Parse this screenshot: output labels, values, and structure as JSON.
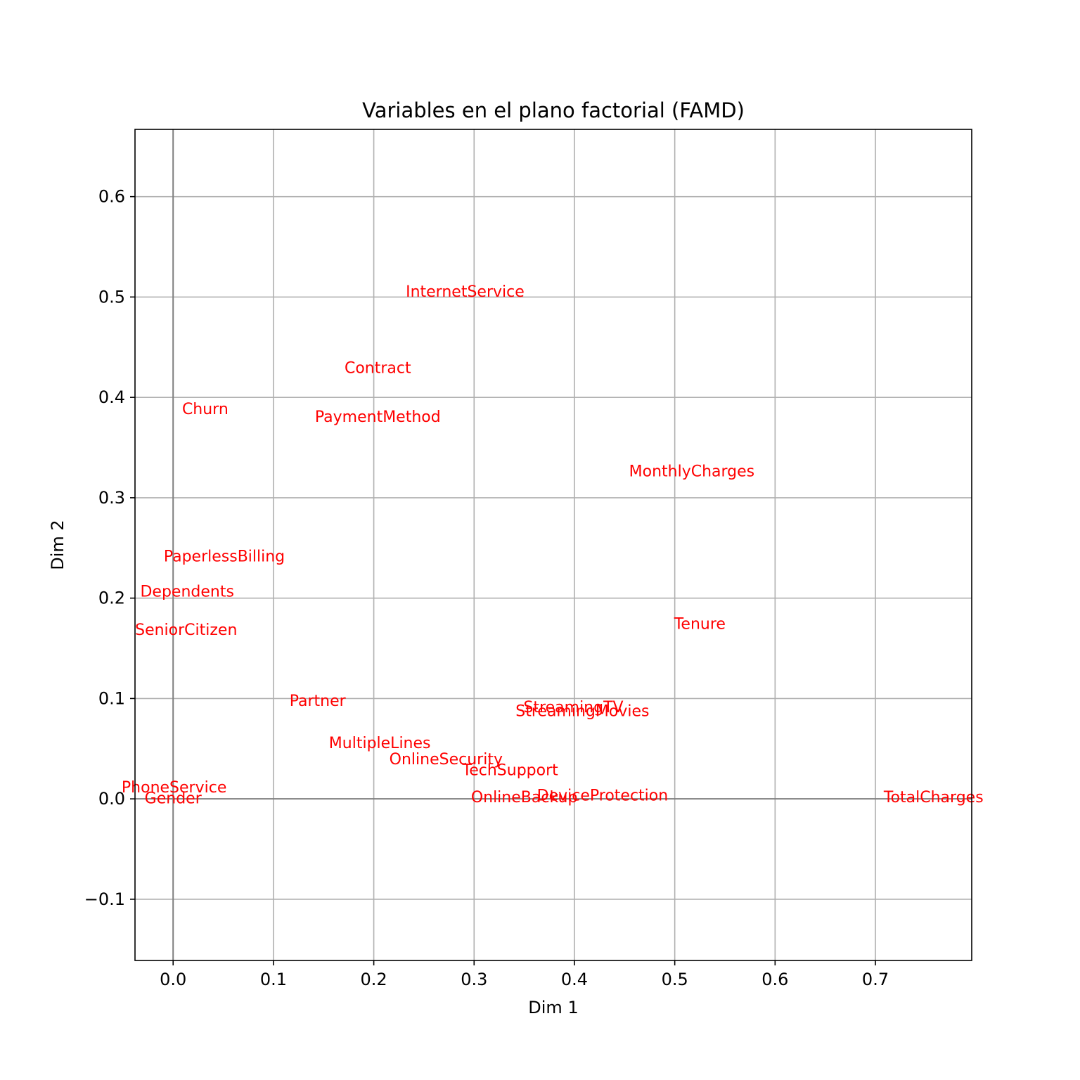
{
  "chart_data": {
    "type": "scatter",
    "title": "Variables en el plano factorial (FAMD)",
    "xlabel": "Dim 1",
    "ylabel": "Dim 2",
    "xlim": [
      -0.038,
      0.796
    ],
    "ylim": [
      -0.161,
      0.667
    ],
    "xticks": [
      0.0,
      0.1,
      0.2,
      0.3,
      0.4,
      0.5,
      0.6,
      0.7
    ],
    "xtick_labels": [
      "0.0",
      "0.1",
      "0.2",
      "0.3",
      "0.4",
      "0.5",
      "0.6",
      "0.7"
    ],
    "yticks": [
      -0.1,
      0.0,
      0.1,
      0.2,
      0.3,
      0.4,
      0.5,
      0.6
    ],
    "ytick_labels": [
      "−0.1",
      "0.0",
      "0.1",
      "0.2",
      "0.3",
      "0.4",
      "0.5",
      "0.6"
    ],
    "grid": true,
    "reference_lines": {
      "x": 0,
      "y": 0,
      "color": "#808080"
    },
    "label_color": "#ff0000",
    "points": [
      {
        "name": "InternetService",
        "x": 0.291,
        "y": 0.505
      },
      {
        "name": "Contract",
        "x": 0.204,
        "y": 0.429
      },
      {
        "name": "Churn",
        "x": 0.032,
        "y": 0.388
      },
      {
        "name": "PaymentMethod",
        "x": 0.204,
        "y": 0.38
      },
      {
        "name": "MonthlyCharges",
        "x": 0.517,
        "y": 0.326
      },
      {
        "name": "PaperlessBilling",
        "x": 0.051,
        "y": 0.241
      },
      {
        "name": "Dependents",
        "x": 0.014,
        "y": 0.206
      },
      {
        "name": "SeniorCitizen",
        "x": 0.013,
        "y": 0.168
      },
      {
        "name": "Tenure",
        "x": 0.525,
        "y": 0.174
      },
      {
        "name": "Partner",
        "x": 0.144,
        "y": 0.097
      },
      {
        "name": "StreamingTV",
        "x": 0.399,
        "y": 0.091
      },
      {
        "name": "StreamingMovies",
        "x": 0.408,
        "y": 0.087
      },
      {
        "name": "MultipleLines",
        "x": 0.206,
        "y": 0.055
      },
      {
        "name": "OnlineSecurity",
        "x": 0.272,
        "y": 0.039
      },
      {
        "name": "TechSupport",
        "x": 0.336,
        "y": 0.028
      },
      {
        "name": "PhoneService",
        "x": 0.001,
        "y": 0.011
      },
      {
        "name": "Gender",
        "x": 0.0,
        "y": 0.0
      },
      {
        "name": "OnlineBackup",
        "x": 0.35,
        "y": 0.001
      },
      {
        "name": "DeviceProtection",
        "x": 0.428,
        "y": 0.003
      },
      {
        "name": "TotalCharges",
        "x": 0.758,
        "y": 0.001
      }
    ]
  }
}
